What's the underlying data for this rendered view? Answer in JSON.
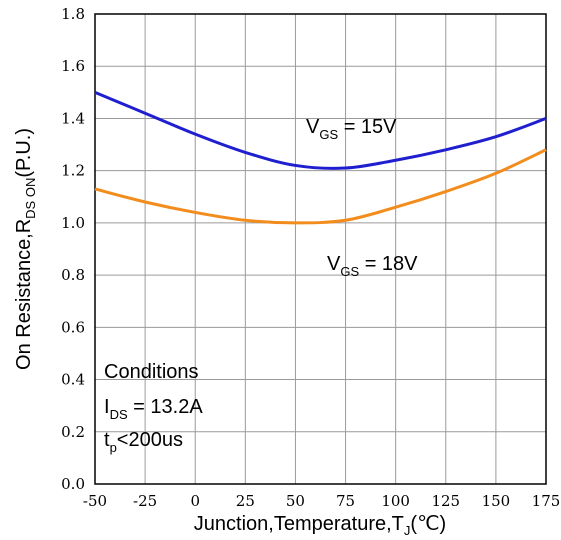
{
  "chart_data": {
    "type": "line",
    "xlabel_parts": {
      "main": "Junction,Temperature,T",
      "sub": "J",
      "tail": "(℃)"
    },
    "ylabel_parts": {
      "main": "On Resistance,R",
      "sub": "DS ON",
      "tail": "(P.U.)"
    },
    "xlim": [
      -50,
      175
    ],
    "ylim": [
      0.0,
      1.8
    ],
    "x_ticks": [
      -50,
      -25,
      0,
      25,
      50,
      75,
      100,
      125,
      150,
      175
    ],
    "y_ticks": [
      "0.0",
      "0.2",
      "0.4",
      "0.6",
      "0.8",
      "1.0",
      "1.2",
      "1.4",
      "1.6",
      "1.8"
    ],
    "grid": true,
    "x": [
      -50,
      -25,
      0,
      25,
      50,
      75,
      100,
      125,
      150,
      175
    ],
    "series": [
      {
        "name_parts": {
          "main": "V",
          "sub": "GS",
          "tail": " = 15V"
        },
        "color": "#1f1fd0",
        "values": [
          1.5,
          1.42,
          1.34,
          1.27,
          1.22,
          1.21,
          1.24,
          1.28,
          1.33,
          1.4
        ]
      },
      {
        "name_parts": {
          "main": "V",
          "sub": "GS",
          "tail": " = 18V"
        },
        "color": "#f28c1c",
        "values": [
          1.13,
          1.08,
          1.04,
          1.01,
          1.0,
          1.01,
          1.06,
          1.12,
          1.19,
          1.28
        ]
      }
    ],
    "conditions": {
      "title": "Conditions",
      "line1": {
        "main": "I",
        "sub": "DS",
        "tail": " = 13.2A"
      },
      "line2": {
        "main": "t",
        "sub": "p",
        "tail": "<200us"
      }
    }
  }
}
